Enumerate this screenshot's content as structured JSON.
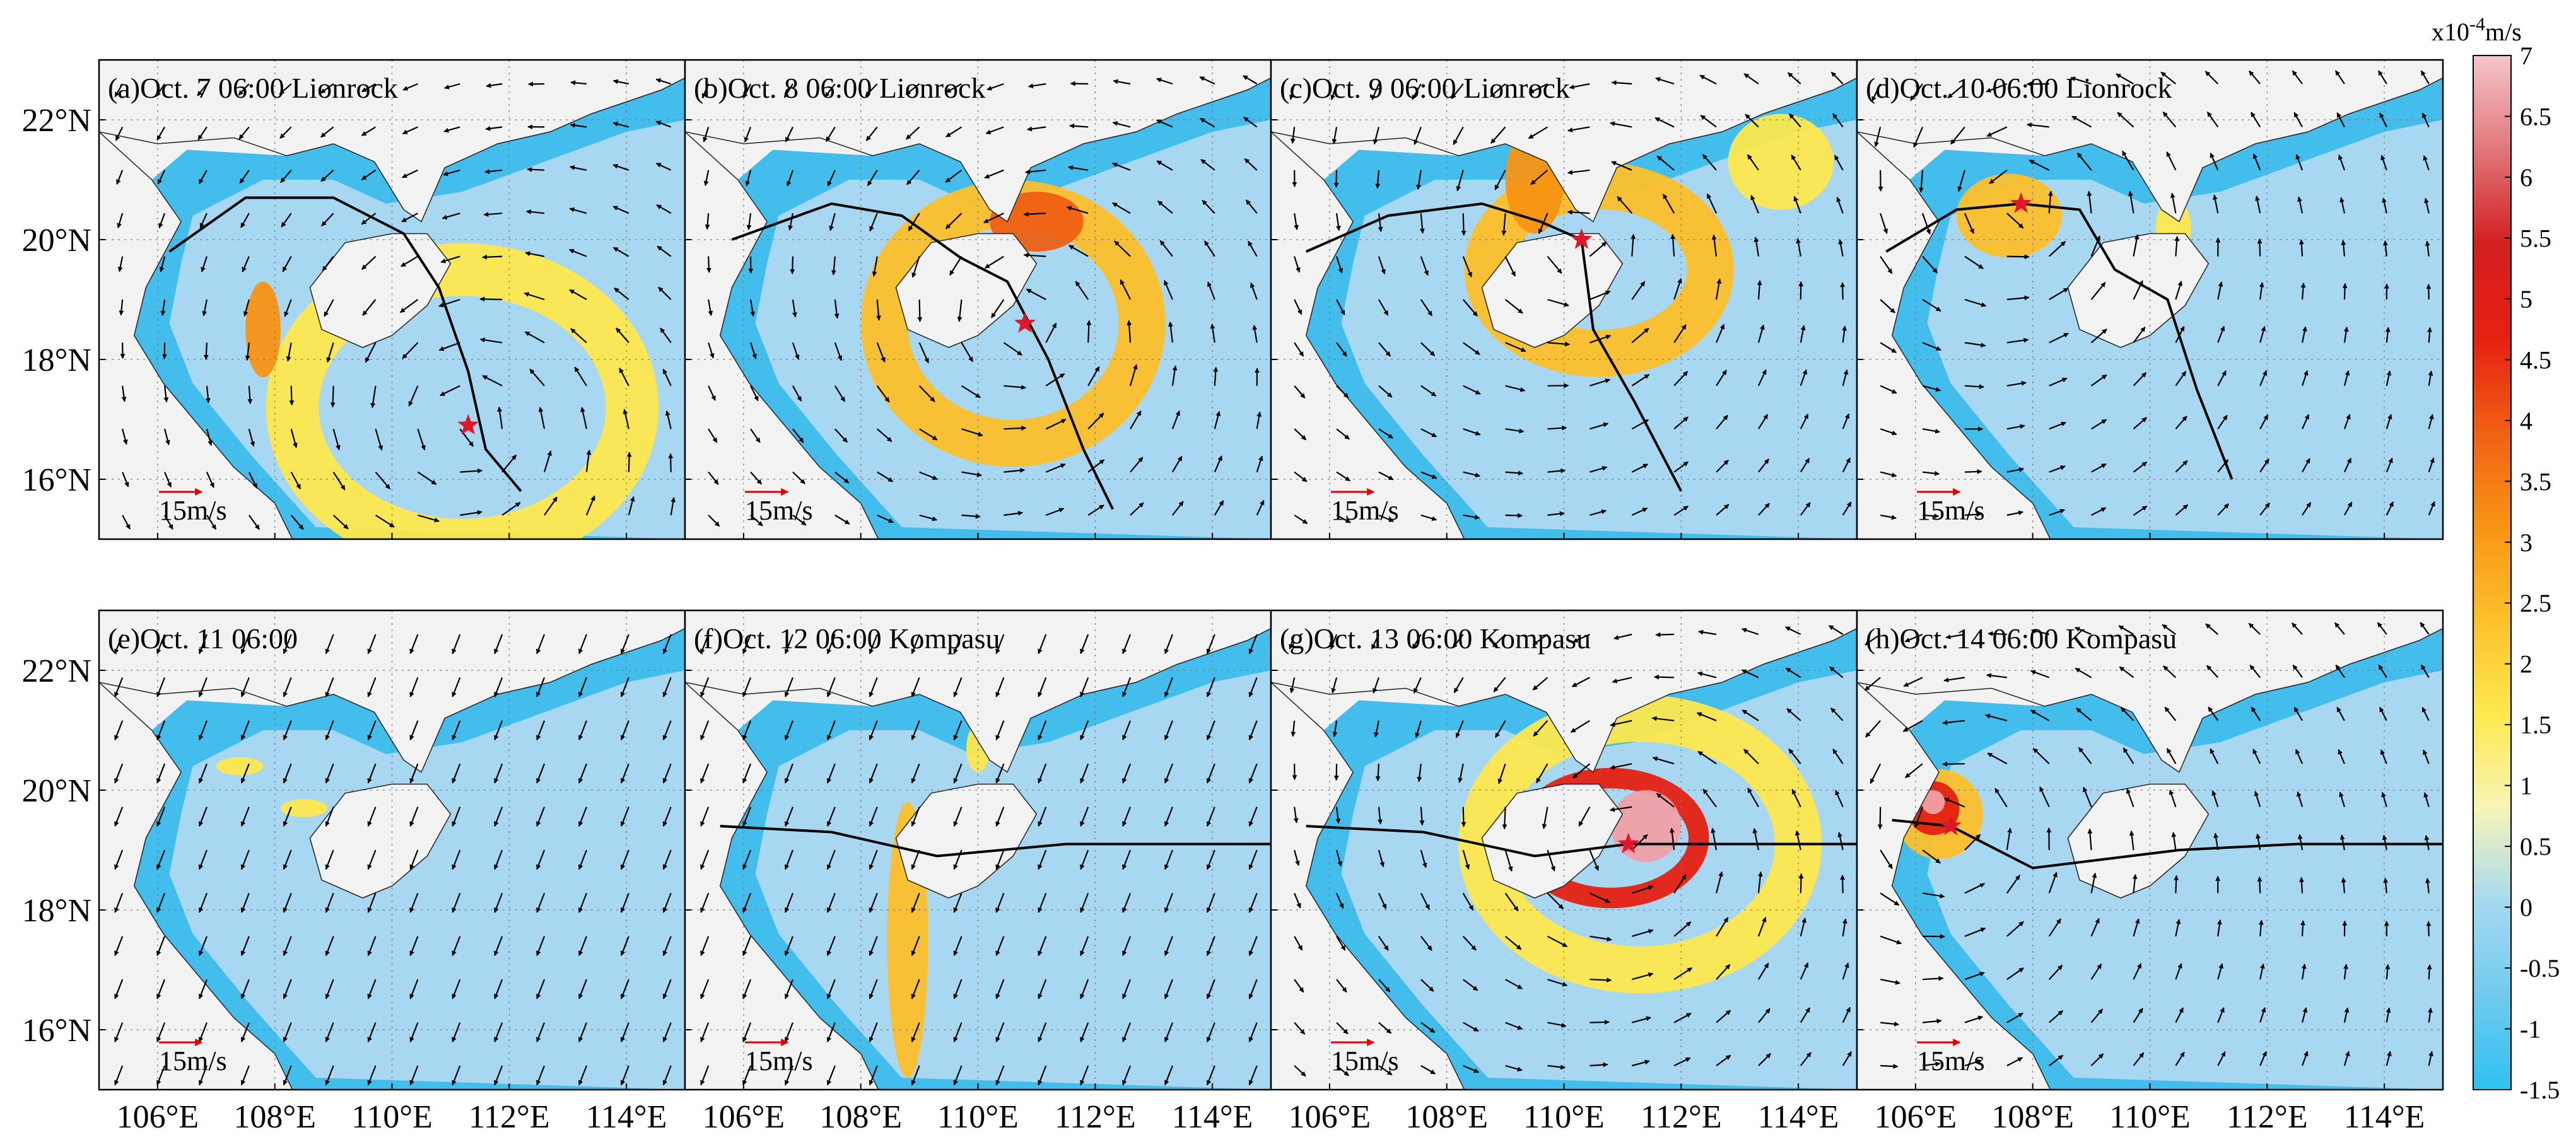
{
  "chart_data": {
    "type": "heatmap",
    "layout": "2x4 panel map grid",
    "x_ticks": [
      "106°E",
      "108°E",
      "110°E",
      "112°E",
      "114°E"
    ],
    "y_ticks": [
      "16°N",
      "18°N",
      "20°N",
      "22°N"
    ],
    "xlim": [
      105,
      115
    ],
    "ylim": [
      15,
      23
    ],
    "grid": true,
    "reference_vector_label": "15m/s",
    "colorbar": {
      "unit_label": "x10",
      "unit_exponent": "-4",
      "unit_suffix": "m/s",
      "ticks": [
        "7",
        "6.5",
        "6",
        "5.5",
        "5",
        "4.5",
        "4",
        "3.5",
        "3",
        "2.5",
        "2",
        "1.5",
        "1",
        "0.5",
        "0",
        "-0.5",
        "-1",
        "-1.5"
      ],
      "range": [
        -1.5,
        7
      ],
      "position": "right",
      "colors": [
        "#2fc0f0",
        "#6fcbee",
        "#a6d9f1",
        "#f7f5b5",
        "#fde84e",
        "#fcc02a",
        "#f79414",
        "#ef6014",
        "#e52011",
        "#d21f1f",
        "#e0777a",
        "#f6c5c9"
      ]
    },
    "panels": [
      {
        "title": "(a)Oct. 7 06:00 Lionrock",
        "storm": "Lionrock",
        "center": [
          111.3,
          16.9
        ],
        "track": [
          [
            106.2,
            19.8
          ],
          [
            107.5,
            20.7
          ],
          [
            109.0,
            20.7
          ],
          [
            110.2,
            20.1
          ],
          [
            110.8,
            19.2
          ],
          [
            111.3,
            17.8
          ],
          [
            111.6,
            16.5
          ],
          [
            112.2,
            15.8
          ]
        ],
        "features": [
          {
            "kind": "ring",
            "cx": 111.2,
            "cy": 17.2,
            "rx": 2.9,
            "ry": 2.3,
            "width": 0.9,
            "color": "#fde84e"
          },
          {
            "kind": "blob",
            "cx": 107.8,
            "cy": 18.5,
            "rx": 0.3,
            "ry": 0.8,
            "color": "#f79414"
          }
        ]
      },
      {
        "title": "(b)Oct. 8 06:00 Lionrock",
        "storm": "Lionrock",
        "center": [
          110.8,
          18.6
        ],
        "track": [
          [
            105.8,
            20.0
          ],
          [
            107.5,
            20.6
          ],
          [
            108.7,
            20.4
          ],
          [
            109.7,
            19.7
          ],
          [
            110.5,
            19.3
          ],
          [
            111.2,
            18.0
          ],
          [
            111.8,
            16.5
          ],
          [
            112.3,
            15.5
          ]
        ],
        "features": [
          {
            "kind": "ring",
            "cx": 110.6,
            "cy": 18.6,
            "rx": 2.2,
            "ry": 2.0,
            "width": 0.8,
            "color": "#fcc02a"
          },
          {
            "kind": "blob",
            "cx": 111.0,
            "cy": 20.3,
            "rx": 0.8,
            "ry": 0.5,
            "color": "#ef6014"
          }
        ]
      },
      {
        "title": "(c)Oct. 9 06:00 Lionrock",
        "storm": "Lionrock",
        "center": [
          110.3,
          20.0
        ],
        "track": [
          [
            105.6,
            19.8
          ],
          [
            107.0,
            20.4
          ],
          [
            108.6,
            20.6
          ],
          [
            109.6,
            20.3
          ],
          [
            110.3,
            20.0
          ],
          [
            110.5,
            18.5
          ],
          [
            111.2,
            17.3
          ],
          [
            112.0,
            15.8
          ]
        ],
        "features": [
          {
            "kind": "ring",
            "cx": 110.6,
            "cy": 19.5,
            "rx": 1.9,
            "ry": 1.4,
            "width": 0.8,
            "color": "#fcc02a"
          },
          {
            "kind": "blob",
            "cx": 109.5,
            "cy": 21.0,
            "rx": 0.5,
            "ry": 0.9,
            "color": "#f79414"
          },
          {
            "kind": "blob",
            "cx": 113.7,
            "cy": 21.3,
            "rx": 0.9,
            "ry": 0.8,
            "color": "#fde84e"
          }
        ]
      },
      {
        "title": "(d)Oct. 10 06:00 Lionrock",
        "storm": "Lionrock",
        "center": [
          107.8,
          20.6
        ],
        "track": [
          [
            105.5,
            19.8
          ],
          [
            106.7,
            20.5
          ],
          [
            107.8,
            20.6
          ],
          [
            108.8,
            20.5
          ],
          [
            109.4,
            19.5
          ],
          [
            110.3,
            19.0
          ],
          [
            110.8,
            17.5
          ],
          [
            111.4,
            16.0
          ]
        ],
        "features": [
          {
            "kind": "blob",
            "cx": 107.6,
            "cy": 20.4,
            "rx": 0.9,
            "ry": 0.7,
            "color": "#fcc02a"
          },
          {
            "kind": "blob",
            "cx": 110.4,
            "cy": 20.2,
            "rx": 0.3,
            "ry": 0.5,
            "color": "#fde84e"
          }
        ]
      },
      {
        "title": "(e)Oct. 11 06:00",
        "storm": "",
        "center": null,
        "track": [],
        "features": [
          {
            "kind": "blob",
            "cx": 107.4,
            "cy": 20.4,
            "rx": 0.4,
            "ry": 0.15,
            "color": "#fde84e"
          },
          {
            "kind": "blob",
            "cx": 105.3,
            "cy": 19.8,
            "rx": 0.15,
            "ry": 0.5,
            "color": "#fde84e"
          },
          {
            "kind": "blob",
            "cx": 108.5,
            "cy": 19.7,
            "rx": 0.4,
            "ry": 0.15,
            "color": "#fde84e"
          }
        ]
      },
      {
        "title": "(f)Oct. 12 06:00 Kompasu",
        "storm": "Kompasu",
        "center": null,
        "track": [
          [
            105.6,
            19.4
          ],
          [
            107.5,
            19.3
          ],
          [
            109.3,
            18.9
          ],
          [
            111.5,
            19.1
          ],
          [
            113.5,
            19.1
          ],
          [
            115.0,
            19.1
          ]
        ],
        "features": [
          {
            "kind": "blob",
            "cx": 108.8,
            "cy": 17.5,
            "rx": 0.35,
            "ry": 2.3,
            "color": "#fcc02a"
          },
          {
            "kind": "blob",
            "cx": 110.0,
            "cy": 20.7,
            "rx": 0.2,
            "ry": 0.4,
            "color": "#fde84e"
          }
        ]
      },
      {
        "title": "(g)Oct. 13 06:00 Kompasu",
        "storm": "Kompasu",
        "center": [
          111.1,
          19.1
        ],
        "track": [
          [
            105.6,
            19.4
          ],
          [
            107.6,
            19.3
          ],
          [
            109.5,
            18.9
          ],
          [
            111.1,
            19.1
          ],
          [
            113.0,
            19.1
          ],
          [
            115.0,
            19.1
          ]
        ],
        "features": [
          {
            "kind": "ring",
            "cx": 111.3,
            "cy": 19.1,
            "rx": 2.7,
            "ry": 2.1,
            "width": 0.8,
            "color": "#fde84e"
          },
          {
            "kind": "ring",
            "cx": 110.8,
            "cy": 19.2,
            "rx": 1.5,
            "ry": 1.0,
            "width": 0.35,
            "color": "#e52011"
          },
          {
            "kind": "blob",
            "cx": 111.4,
            "cy": 19.4,
            "rx": 0.6,
            "ry": 0.6,
            "color": "#f0a0a6"
          }
        ]
      },
      {
        "title": "(h)Oct. 14 06:00 Kompasu",
        "storm": "Kompasu",
        "center": [
          106.6,
          19.4
        ],
        "track": [
          [
            105.6,
            19.5
          ],
          [
            106.6,
            19.4
          ],
          [
            108.0,
            18.7
          ],
          [
            110.5,
            19.0
          ],
          [
            112.5,
            19.1
          ],
          [
            115.0,
            19.1
          ]
        ],
        "features": [
          {
            "kind": "blob",
            "cx": 106.4,
            "cy": 19.6,
            "rx": 0.75,
            "ry": 0.75,
            "color": "#fcc02a"
          },
          {
            "kind": "blob",
            "cx": 106.3,
            "cy": 19.7,
            "rx": 0.45,
            "ry": 0.45,
            "color": "#e52011"
          },
          {
            "kind": "blob",
            "cx": 106.3,
            "cy": 19.8,
            "rx": 0.2,
            "ry": 0.2,
            "color": "#f0a0a6"
          }
        ]
      }
    ]
  },
  "colors": {
    "land": "#f2f2f2",
    "base_water": "#a8d8f1",
    "coastal_water": "#43bdec",
    "track": "#000000",
    "star": "#e2162a",
    "ref_arrow": "#e00000"
  }
}
